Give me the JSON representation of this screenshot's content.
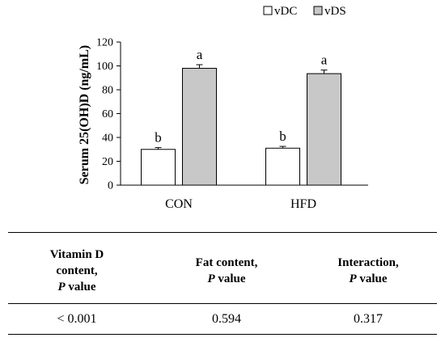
{
  "chart_data": {
    "type": "bar",
    "ylabel": "Serum 25(OH)D (ng/mL)",
    "xlabel": "",
    "ylim": [
      0,
      120
    ],
    "yticks": [
      0,
      20,
      40,
      60,
      80,
      100,
      120
    ],
    "categories": [
      "CON",
      "HFD"
    ],
    "series": [
      {
        "name": "vDC",
        "values": [
          30,
          31
        ],
        "errors": [
          1.5,
          1.5
        ],
        "labels": [
          "b",
          "b"
        ],
        "color": "#ffffff"
      },
      {
        "name": "vDS",
        "values": [
          98,
          93.5
        ],
        "errors": [
          3,
          3
        ],
        "labels": [
          "a",
          "a"
        ],
        "color": "#c8c8c8"
      }
    ],
    "legend": "top-right"
  },
  "table": {
    "headers": [
      {
        "lines": [
          "Vitamin D",
          "content,"
        ],
        "italic": "P",
        "suffix": " value"
      },
      {
        "lines": [
          "Fat content,"
        ],
        "italic": "P",
        "suffix": " value"
      },
      {
        "lines": [
          "Interaction,"
        ],
        "italic": "P",
        "suffix": " value"
      }
    ],
    "values": [
      "< 0.001",
      "0.594",
      "0.317"
    ]
  }
}
